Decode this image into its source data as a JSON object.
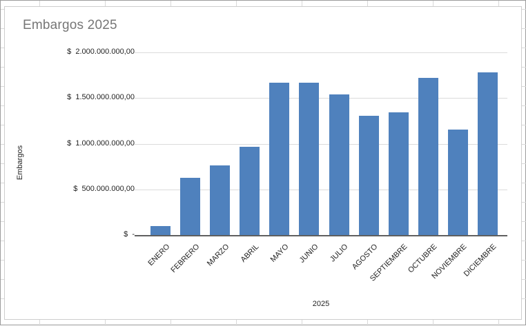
{
  "chart_data": {
    "type": "bar",
    "title": "Embargos 2025",
    "xlabel": "2025",
    "ylabel": "Embargos",
    "categories": [
      "ENERO",
      "FEBRERO",
      "MARZO",
      "ABRIL",
      "MAYO",
      "JUNIO",
      "JULIO",
      "AGOSTO",
      "SEPTIEMBRE",
      "OCTUBRE",
      "NOVIEMBRE",
      "DICIEMBRE"
    ],
    "values": [
      95000000,
      630000000,
      765000000,
      965000000,
      1665000000,
      1670000000,
      1540000000,
      1305000000,
      1345000000,
      1720000000,
      1155000000,
      1780000000
    ],
    "ylim": [
      0,
      2000000000
    ],
    "ytick_values": [
      2000000000,
      1500000000,
      1000000000,
      500000000,
      0
    ],
    "ytick_labels": [
      "$  2.000.000.000,00",
      "$  1.500.000.000,00",
      "$  1.000.000.000,00",
      "$  500.000.000,00",
      "$  -"
    ],
    "grid": true,
    "legend": false,
    "colors": {
      "bar": "#4F81BD",
      "gridline": "#dbdbdb",
      "axis_line": "#5f5f5f",
      "title": "#767676",
      "label_text": "#1f1f1f"
    }
  }
}
